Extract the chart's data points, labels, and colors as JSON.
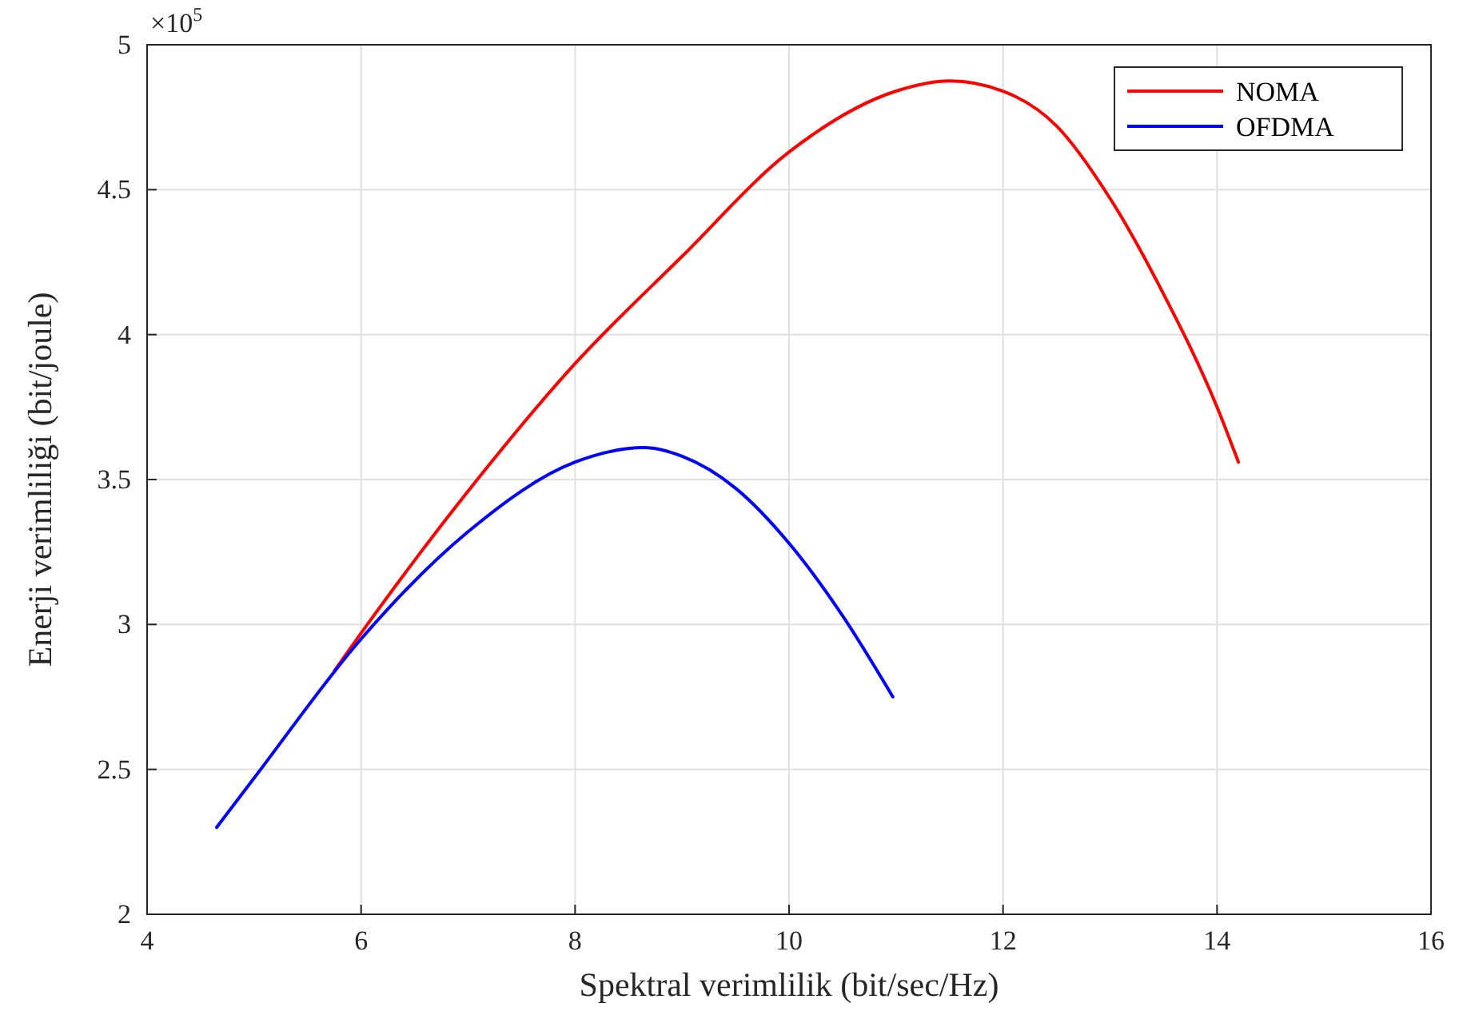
{
  "chart_data": {
    "type": "line",
    "xlabel": "Spektral verimlilik (bit/sec/Hz)",
    "ylabel": "Enerji verimliliği (bit/joule)",
    "annotations": [
      "×10$^{5}$"
    ],
    "xlim": [
      4,
      16
    ],
    "xticks": [
      4,
      6,
      8,
      10,
      12,
      14,
      16
    ],
    "ylim": [
      2,
      5
    ],
    "yticks": [
      2,
      2.5,
      3,
      3.5,
      4,
      4.5,
      5
    ],
    "grid": true,
    "legend": "top right",
    "line_style": "solid",
    "marker": "none",
    "series": [
      {
        "name": "NOMA",
        "color": "#ff0000",
        "x": [
          5.75,
          6,
          7,
          8,
          9,
          10,
          11,
          11.5,
          12,
          12.5,
          13,
          13.5,
          14,
          14.2
        ],
        "values": [
          2.84,
          2.97,
          3.46,
          3.9,
          4.27,
          4.63,
          4.84,
          4.875,
          4.84,
          4.72,
          4.47,
          4.14,
          3.75,
          3.56
        ]
      },
      {
        "name": "OFDMA",
        "color": "#0000ff",
        "x": [
          4.65,
          5,
          6,
          7,
          8,
          8.65,
          9,
          9.5,
          10,
          10.5,
          10.97
        ],
        "values": [
          2.3,
          2.47,
          2.95,
          3.32,
          3.56,
          3.61,
          3.58,
          3.47,
          3.28,
          3.03,
          2.75
        ]
      }
    ]
  }
}
